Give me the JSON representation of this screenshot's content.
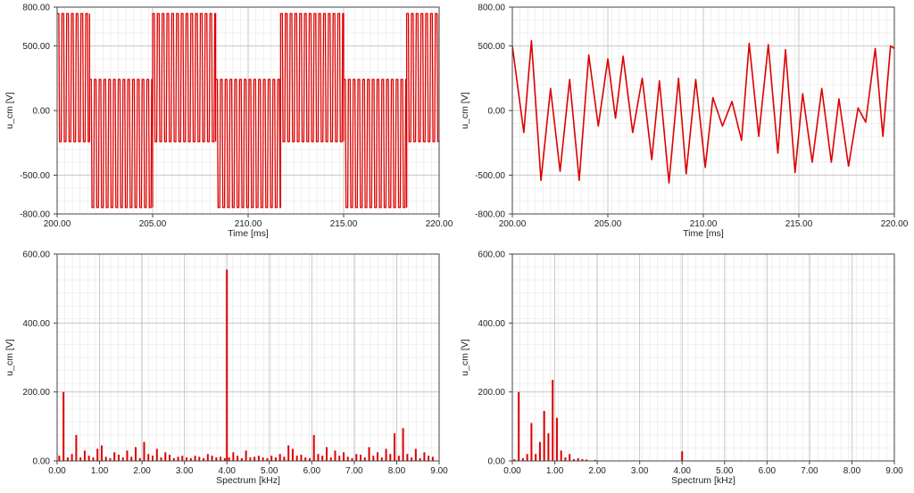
{
  "colors": {
    "trace": "#dd0000",
    "grid_major": "#bdbdbd",
    "grid_minor": "#e6e6e6",
    "frame": "#444444"
  },
  "chart_data": [
    {
      "id": "time-left",
      "type": "line",
      "xlabel": "Time [ms]",
      "ylabel": "u_cm [V]",
      "xlim": [
        200,
        220
      ],
      "ylim": [
        -800,
        800
      ],
      "xticks": [
        "200.00",
        "205.00",
        "210.00",
        "215.00",
        "220.00"
      ],
      "yticks": [
        "800.00",
        "500.00",
        "0.00",
        "-500.00",
        "-800.00"
      ],
      "grid": true,
      "series": [
        {
          "pwm": true,
          "carrier_khz": 4.0,
          "segments": [
            {
              "x0": 200.0,
              "x1": 201.7,
              "hi": 750,
              "lo": -240
            },
            {
              "x0": 201.7,
              "x1": 205.0,
              "hi": 240,
              "lo": -750
            },
            {
              "x0": 205.0,
              "x1": 208.3,
              "hi": 750,
              "lo": -240
            },
            {
              "x0": 208.3,
              "x1": 211.7,
              "hi": 240,
              "lo": -750
            },
            {
              "x0": 211.7,
              "x1": 215.0,
              "hi": 750,
              "lo": -240
            },
            {
              "x0": 215.0,
              "x1": 218.3,
              "hi": 240,
              "lo": -750
            },
            {
              "x0": 218.3,
              "x1": 220.0,
              "hi": 750,
              "lo": -240
            }
          ]
        }
      ]
    },
    {
      "id": "time-right",
      "type": "line",
      "xlabel": "Time [ms]",
      "ylabel": "u_cm [V]",
      "xlim": [
        200,
        220
      ],
      "ylim": [
        -800,
        800
      ],
      "xticks": [
        "200.00",
        "205.00",
        "210.00",
        "215.00",
        "220.00"
      ],
      "yticks": [
        "800.00",
        "500.00",
        "0.00",
        "-500.00",
        "-800.00"
      ],
      "grid": true,
      "series": [
        {
          "x": [
            200.0,
            200.6,
            201.0,
            201.5,
            202.0,
            202.5,
            203.0,
            203.5,
            204.0,
            204.5,
            205.0,
            205.4,
            205.8,
            206.3,
            206.8,
            207.3,
            207.7,
            208.2,
            208.7,
            209.1,
            209.6,
            210.1,
            210.5,
            211.0,
            211.5,
            212.0,
            212.4,
            212.9,
            213.4,
            213.9,
            214.3,
            214.8,
            215.2,
            215.7,
            216.2,
            216.7,
            217.1,
            217.6,
            218.1,
            218.5,
            219.0,
            219.4,
            219.8,
            220.0
          ],
          "y": [
            500,
            -170,
            540,
            -540,
            170,
            -470,
            240,
            -540,
            430,
            -120,
            400,
            -60,
            420,
            -170,
            250,
            -380,
            230,
            -560,
            250,
            -490,
            240,
            -440,
            100,
            -120,
            70,
            -230,
            520,
            -200,
            510,
            -330,
            470,
            -480,
            130,
            -400,
            170,
            -400,
            90,
            -430,
            20,
            -90,
            480,
            -200,
            500,
            480
          ]
        }
      ]
    },
    {
      "id": "spectrum-left",
      "type": "bar",
      "xlabel": "Spectrum [kHz]",
      "ylabel": "u_cm [V]",
      "xlim": [
        0,
        9
      ],
      "ylim": [
        0,
        600
      ],
      "xticks": [
        "0.00",
        "1.00",
        "2.00",
        "3.00",
        "4.00",
        "5.00",
        "6.00",
        "7.00",
        "8.00",
        "9.00"
      ],
      "yticks": [
        "600.00",
        "400.00",
        "200.00",
        "0.00"
      ],
      "grid": true,
      "series": [
        {
          "x": [
            0.05,
            0.15,
            0.25,
            0.35,
            0.45,
            0.55,
            0.65,
            0.75,
            0.85,
            0.95,
            1.05,
            1.15,
            1.25,
            1.35,
            1.45,
            1.55,
            1.65,
            1.75,
            1.85,
            1.95,
            2.05,
            2.15,
            2.25,
            2.35,
            2.45,
            2.55,
            2.65,
            2.75,
            2.85,
            2.95,
            3.05,
            3.15,
            3.25,
            3.35,
            3.45,
            3.55,
            3.65,
            3.75,
            3.85,
            3.95,
            4.0,
            4.05,
            4.15,
            4.25,
            4.35,
            4.45,
            4.55,
            4.65,
            4.75,
            4.85,
            4.95,
            5.05,
            5.15,
            5.25,
            5.35,
            5.45,
            5.55,
            5.65,
            5.75,
            5.85,
            5.95,
            6.05,
            6.15,
            6.25,
            6.35,
            6.45,
            6.55,
            6.65,
            6.75,
            6.85,
            6.95,
            7.05,
            7.15,
            7.25,
            7.35,
            7.45,
            7.55,
            7.65,
            7.75,
            7.85,
            7.95,
            8.05,
            8.15,
            8.25,
            8.35,
            8.45,
            8.55,
            8.65,
            8.75,
            8.85
          ],
          "y": [
            15,
            200,
            10,
            20,
            75,
            10,
            30,
            15,
            10,
            35,
            45,
            12,
            8,
            25,
            18,
            10,
            30,
            12,
            40,
            8,
            55,
            20,
            15,
            35,
            10,
            25,
            18,
            8,
            12,
            15,
            10,
            8,
            15,
            12,
            8,
            20,
            15,
            10,
            12,
            8,
            555,
            10,
            25,
            15,
            8,
            30,
            10,
            12,
            15,
            10,
            8,
            15,
            10,
            20,
            12,
            45,
            35,
            15,
            18,
            10,
            8,
            75,
            20,
            15,
            40,
            10,
            30,
            15,
            25,
            12,
            8,
            20,
            18,
            10,
            40,
            15,
            25,
            10,
            35,
            20,
            80,
            15,
            95,
            20,
            10,
            35,
            8,
            25,
            15,
            12
          ]
        }
      ]
    },
    {
      "id": "spectrum-right",
      "type": "bar",
      "xlabel": "Spectrum [kHz]",
      "ylabel": "u_cm [V]",
      "xlim": [
        0,
        9
      ],
      "ylim": [
        0,
        600
      ],
      "xticks": [
        "0.00",
        "1.00",
        "2.00",
        "3.00",
        "4.00",
        "5.00",
        "6.00",
        "7.00",
        "8.00",
        "9.00"
      ],
      "yticks": [
        "600.00",
        "400.00",
        "200.00",
        "0.00"
      ],
      "grid": true,
      "series": [
        {
          "x": [
            0.05,
            0.15,
            0.25,
            0.35,
            0.45,
            0.55,
            0.65,
            0.75,
            0.85,
            0.95,
            1.05,
            1.15,
            1.25,
            1.35,
            1.45,
            1.55,
            1.65,
            1.75,
            1.95,
            4.0
          ],
          "y": [
            5,
            200,
            8,
            20,
            110,
            20,
            55,
            145,
            80,
            235,
            125,
            30,
            10,
            20,
            5,
            8,
            5,
            4,
            3,
            28
          ]
        }
      ]
    }
  ]
}
